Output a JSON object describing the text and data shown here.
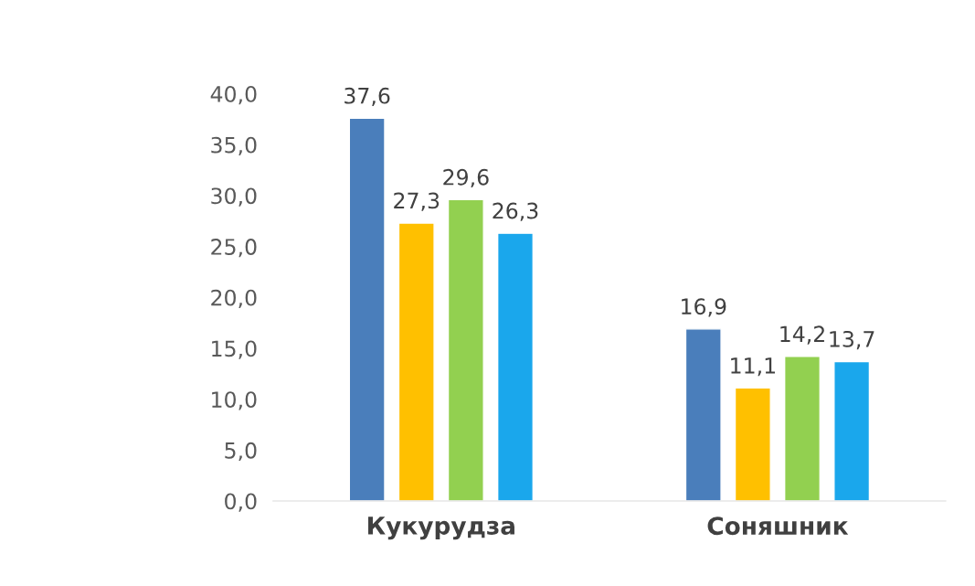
{
  "chart_data": {
    "type": "bar",
    "categories": [
      "Кукурудза",
      "Соняшник"
    ],
    "series": [
      {
        "color": "#4a7ebb",
        "values": [
          37.6,
          16.9
        ],
        "value_labels": [
          "37,6",
          "16,9"
        ]
      },
      {
        "color": "#ffc000",
        "values": [
          27.3,
          11.1
        ],
        "value_labels": [
          "27,3",
          "11,1"
        ]
      },
      {
        "color": "#92d050",
        "values": [
          29.6,
          14.2
        ],
        "value_labels": [
          "29,6",
          "14,2"
        ]
      },
      {
        "color": "#1aa7ec",
        "values": [
          26.3,
          13.7
        ],
        "value_labels": [
          "26,3",
          "13,7"
        ]
      }
    ],
    "ylim": [
      0,
      40
    ],
    "yticks": [
      {
        "value": 0,
        "label": "0,0"
      },
      {
        "value": 5,
        "label": "5,0"
      },
      {
        "value": 10,
        "label": "10,0"
      },
      {
        "value": 15,
        "label": "15,0"
      },
      {
        "value": 20,
        "label": "20,0"
      },
      {
        "value": 25,
        "label": "25,0"
      },
      {
        "value": 30,
        "label": "30,0"
      },
      {
        "value": 35,
        "label": "35,0"
      },
      {
        "value": 40,
        "label": "40,0"
      }
    ],
    "grid": false,
    "legend": false
  }
}
